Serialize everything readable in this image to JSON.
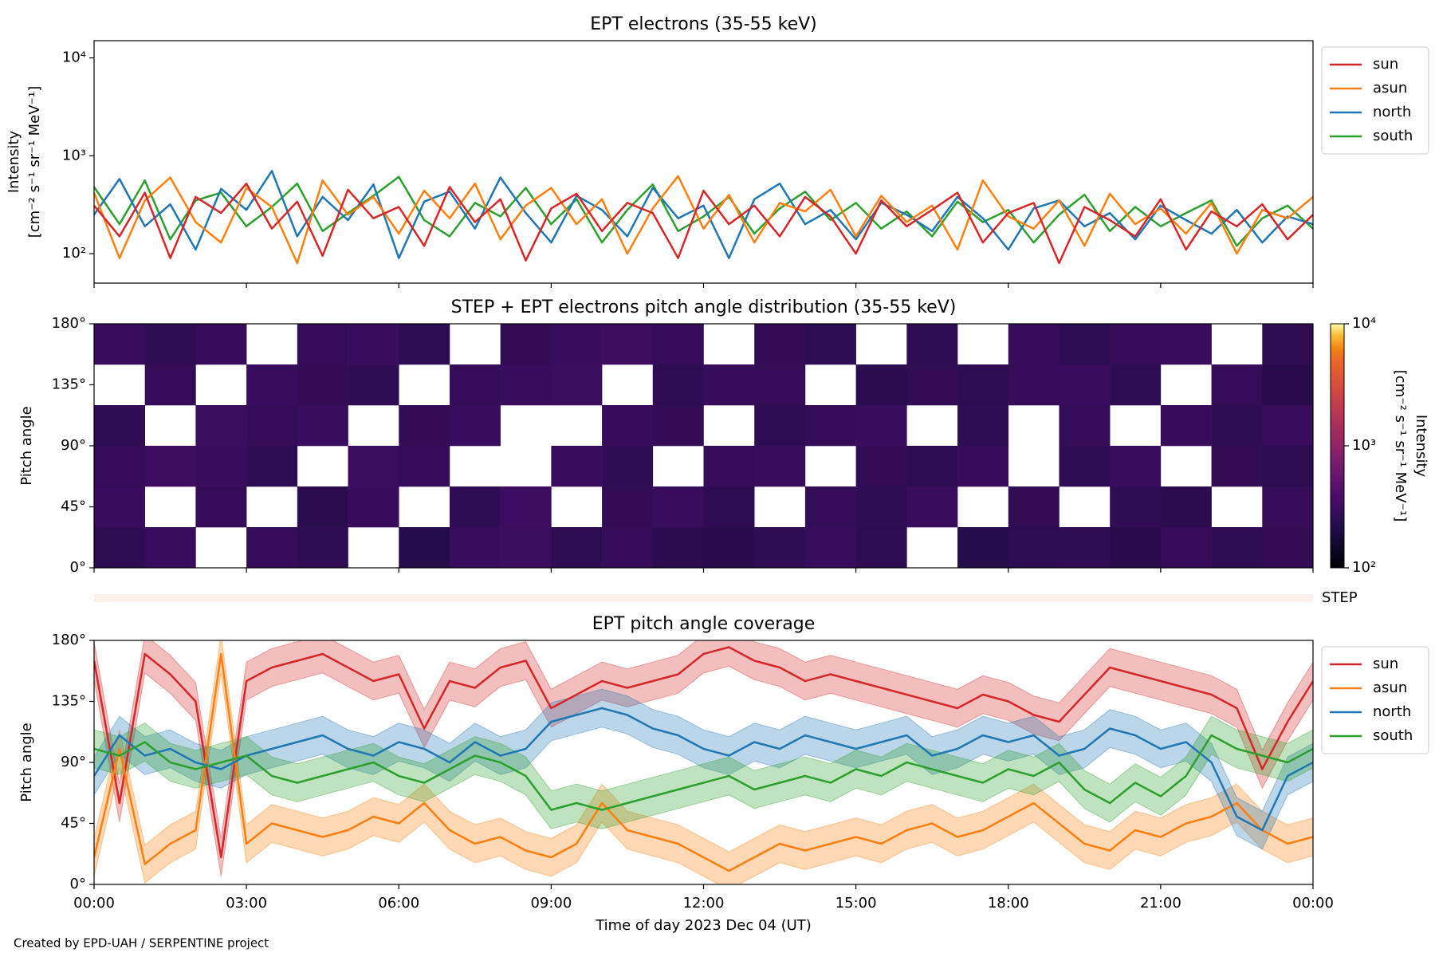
{
  "chart_data": [
    {
      "type": "line",
      "title": "EPT electrons (35-55 keV)",
      "ylabel": [
        "Intensity",
        "[cm⁻² s⁻¹ sr⁻¹ MeV⁻¹]"
      ],
      "log_y": true,
      "ylim": [
        50,
        15000
      ],
      "yticks": [
        {
          "value": 100,
          "label": "10²"
        },
        {
          "value": 1000,
          "label": "10³"
        },
        {
          "value": 10000,
          "label": "10⁴"
        }
      ],
      "xlim": [
        0,
        24
      ],
      "x": [
        0,
        0.5,
        1,
        1.5,
        2,
        2.5,
        3,
        3.5,
        4,
        4.5,
        5,
        5.5,
        6,
        6.5,
        7,
        7.5,
        8,
        8.5,
        9,
        9.5,
        10,
        10.5,
        11,
        11.5,
        12,
        12.5,
        13,
        13.5,
        14,
        14.5,
        15,
        15.5,
        16,
        16.5,
        17,
        17.5,
        18,
        18.5,
        19,
        19.5,
        20,
        20.5,
        21,
        21.5,
        22,
        22.5,
        23,
        23.5,
        24
      ],
      "legend": "upper right outside",
      "series": [
        {
          "name": "sun",
          "color": "#d62728",
          "values": [
            310,
            150,
            420,
            90,
            380,
            260,
            520,
            180,
            340,
            95,
            450,
            230,
            300,
            120,
            480,
            210,
            360,
            85,
            290,
            410,
            170,
            330,
            260,
            90,
            440,
            200,
            310,
            150,
            380,
            240,
            100,
            350,
            190,
            280,
            420,
            130,
            260,
            330,
            80,
            300,
            220,
            150,
            360,
            110,
            270,
            190,
            320,
            140,
            250
          ]
        },
        {
          "name": "asun",
          "color": "#ff7f0e",
          "values": [
            420,
            90,
            350,
            600,
            210,
            130,
            470,
            300,
            80,
            560,
            250,
            380,
            160,
            440,
            230,
            520,
            140,
            310,
            470,
            200,
            360,
            100,
            290,
            620,
            180,
            400,
            130,
            330,
            270,
            450,
            150,
            390,
            210,
            310,
            110,
            560,
            240,
            180,
            350,
            120,
            410,
            200,
            290,
            160,
            330,
            100,
            280,
            230,
            380
          ]
        },
        {
          "name": "north",
          "color": "#1f77b4",
          "values": [
            250,
            580,
            190,
            320,
            110,
            460,
            280,
            700,
            150,
            380,
            220,
            510,
            90,
            340,
            430,
            180,
            600,
            260,
            130,
            390,
            280,
            150,
            470,
            230,
            310,
            90,
            360,
            520,
            200,
            280,
            140,
            330,
            250,
            170,
            380,
            230,
            110,
            290,
            350,
            190,
            260,
            140,
            310,
            220,
            160,
            280,
            130,
            240,
            200
          ]
        },
        {
          "name": "south",
          "color": "#2ca02c",
          "values": [
            480,
            200,
            560,
            140,
            350,
            420,
            190,
            300,
            520,
            170,
            260,
            390,
            610,
            220,
            150,
            330,
            240,
            470,
            200,
            360,
            130,
            280,
            510,
            170,
            240,
            380,
            160,
            290,
            430,
            220,
            330,
            180,
            270,
            150,
            340,
            210,
            280,
            130,
            250,
            400,
            170,
            300,
            190,
            260,
            350,
            120,
            230,
            310,
            180
          ]
        }
      ]
    },
    {
      "type": "heatmap",
      "title": "STEP + EPT electrons pitch angle distribution (35-55 keV)",
      "ylabel": "Pitch angle",
      "xlim": [
        0,
        24
      ],
      "ylim": [
        0,
        180
      ],
      "yticks": [
        {
          "value": 0,
          "label": "0°"
        },
        {
          "value": 45,
          "label": "45°"
        },
        {
          "value": 90,
          "label": "90°"
        },
        {
          "value": 135,
          "label": "135°"
        },
        {
          "value": 180,
          "label": "180°"
        }
      ],
      "x_edges": [
        0,
        1,
        2,
        3,
        4,
        5,
        6,
        7,
        8,
        9,
        10,
        11,
        12,
        13,
        14,
        15,
        16,
        17,
        18,
        19,
        20,
        21,
        22,
        23,
        24
      ],
      "y_edges": [
        0,
        30,
        60,
        90,
        120,
        150,
        180
      ],
      "colormap": "inferno",
      "values": [
        [
          250,
          300,
          null,
          280,
          260,
          null,
          220,
          300,
          310,
          250,
          280,
          240,
          230,
          260,
          300,
          250,
          null,
          220,
          250,
          260,
          230,
          280,
          250,
          270
        ],
        [
          300,
          null,
          280,
          null,
          240,
          290,
          null,
          260,
          320,
          null,
          270,
          300,
          250,
          null,
          280,
          260,
          300,
          null,
          270,
          null,
          260,
          240,
          null,
          280
        ],
        [
          280,
          320,
          300,
          250,
          null,
          310,
          280,
          null,
          null,
          300,
          260,
          null,
          280,
          300,
          null,
          270,
          250,
          290,
          null,
          260,
          300,
          null,
          270,
          250
        ],
        [
          260,
          null,
          310,
          280,
          300,
          null,
          270,
          300,
          null,
          null,
          290,
          270,
          null,
          260,
          280,
          300,
          null,
          260,
          null,
          280,
          null,
          290,
          260,
          300
        ],
        [
          null,
          280,
          null,
          300,
          270,
          260,
          null,
          280,
          300,
          310,
          null,
          260,
          290,
          280,
          null,
          240,
          270,
          250,
          280,
          300,
          260,
          null,
          280,
          230
        ],
        [
          300,
          260,
          290,
          null,
          280,
          300,
          250,
          null,
          270,
          300,
          320,
          280,
          null,
          270,
          250,
          null,
          260,
          null,
          290,
          250,
          280,
          300,
          null,
          260
        ]
      ],
      "colorbar": {
        "label": [
          "Intensity",
          "[cm⁻² s⁻¹ sr⁻¹ MeV⁻¹]"
        ],
        "log": true,
        "lim": [
          100,
          10000
        ],
        "ticks": [
          {
            "value": 100,
            "label": "10²"
          },
          {
            "value": 1000,
            "label": "10³"
          },
          {
            "value": 10000,
            "label": "10⁴"
          }
        ]
      },
      "step_label": "STEP"
    },
    {
      "type": "line-band",
      "title": "EPT pitch angle coverage",
      "ylabel": "Pitch angle",
      "xlabel": "Time of day 2023 Dec 04 (UT)",
      "xlim": [
        0,
        24
      ],
      "ylim": [
        0,
        180
      ],
      "yticks": [
        {
          "value": 0,
          "label": "0°"
        },
        {
          "value": 45,
          "label": "45°"
        },
        {
          "value": 90,
          "label": "90°"
        },
        {
          "value": 135,
          "label": "135°"
        },
        {
          "value": 180,
          "label": "180°"
        }
      ],
      "xticks": [
        {
          "value": 0,
          "label": "00:00"
        },
        {
          "value": 3,
          "label": "03:00"
        },
        {
          "value": 6,
          "label": "06:00"
        },
        {
          "value": 9,
          "label": "09:00"
        },
        {
          "value": 12,
          "label": "12:00"
        },
        {
          "value": 15,
          "label": "15:00"
        },
        {
          "value": 18,
          "label": "18:00"
        },
        {
          "value": 21,
          "label": "21:00"
        },
        {
          "value": 24,
          "label": "00:00"
        }
      ],
      "x": [
        0,
        0.5,
        1,
        1.5,
        2,
        2.5,
        3,
        3.5,
        4,
        4.5,
        5,
        5.5,
        6,
        6.5,
        7,
        7.5,
        8,
        8.5,
        9,
        9.5,
        10,
        10.5,
        11,
        11.5,
        12,
        12.5,
        13,
        13.5,
        14,
        14.5,
        15,
        15.5,
        16,
        16.5,
        17,
        17.5,
        18,
        18.5,
        19,
        19.5,
        20,
        20.5,
        21,
        21.5,
        22,
        22.5,
        23,
        23.5,
        24
      ],
      "legend": "upper right outside",
      "series": [
        {
          "name": "sun",
          "color": "#d62728",
          "error": 14,
          "values": [
            165,
            60,
            170,
            155,
            135,
            20,
            150,
            160,
            165,
            170,
            160,
            150,
            155,
            115,
            150,
            145,
            160,
            165,
            130,
            140,
            150,
            145,
            150,
            155,
            170,
            175,
            165,
            160,
            150,
            155,
            150,
            145,
            140,
            135,
            130,
            140,
            135,
            125,
            120,
            140,
            160,
            155,
            150,
            145,
            140,
            130,
            85,
            120,
            150
          ]
        },
        {
          "name": "asun",
          "color": "#ff7f0e",
          "error": 14,
          "values": [
            20,
            100,
            15,
            30,
            40,
            170,
            30,
            45,
            40,
            35,
            40,
            50,
            45,
            60,
            40,
            30,
            35,
            25,
            20,
            30,
            60,
            40,
            35,
            30,
            20,
            10,
            20,
            30,
            25,
            30,
            35,
            30,
            40,
            45,
            35,
            40,
            50,
            60,
            45,
            30,
            25,
            40,
            35,
            45,
            50,
            60,
            40,
            30,
            35
          ]
        },
        {
          "name": "north",
          "color": "#1f77b4",
          "error": 14,
          "values": [
            80,
            110,
            95,
            100,
            90,
            85,
            95,
            100,
            105,
            110,
            100,
            95,
            105,
            100,
            90,
            105,
            95,
            100,
            120,
            125,
            130,
            125,
            115,
            110,
            100,
            95,
            105,
            100,
            110,
            105,
            100,
            105,
            110,
            95,
            100,
            110,
            105,
            110,
            95,
            100,
            115,
            110,
            100,
            105,
            90,
            50,
            40,
            80,
            90
          ]
        },
        {
          "name": "south",
          "color": "#2ca02c",
          "error": 14,
          "values": [
            100,
            95,
            105,
            90,
            85,
            90,
            95,
            80,
            75,
            80,
            85,
            90,
            80,
            75,
            85,
            95,
            90,
            80,
            55,
            60,
            55,
            60,
            65,
            70,
            75,
            80,
            70,
            75,
            80,
            75,
            85,
            80,
            90,
            85,
            80,
            75,
            85,
            80,
            90,
            70,
            60,
            75,
            65,
            80,
            110,
            100,
            95,
            90,
            100
          ]
        }
      ]
    }
  ],
  "footer": "Created by EPD-UAH / SERPENTINE project"
}
